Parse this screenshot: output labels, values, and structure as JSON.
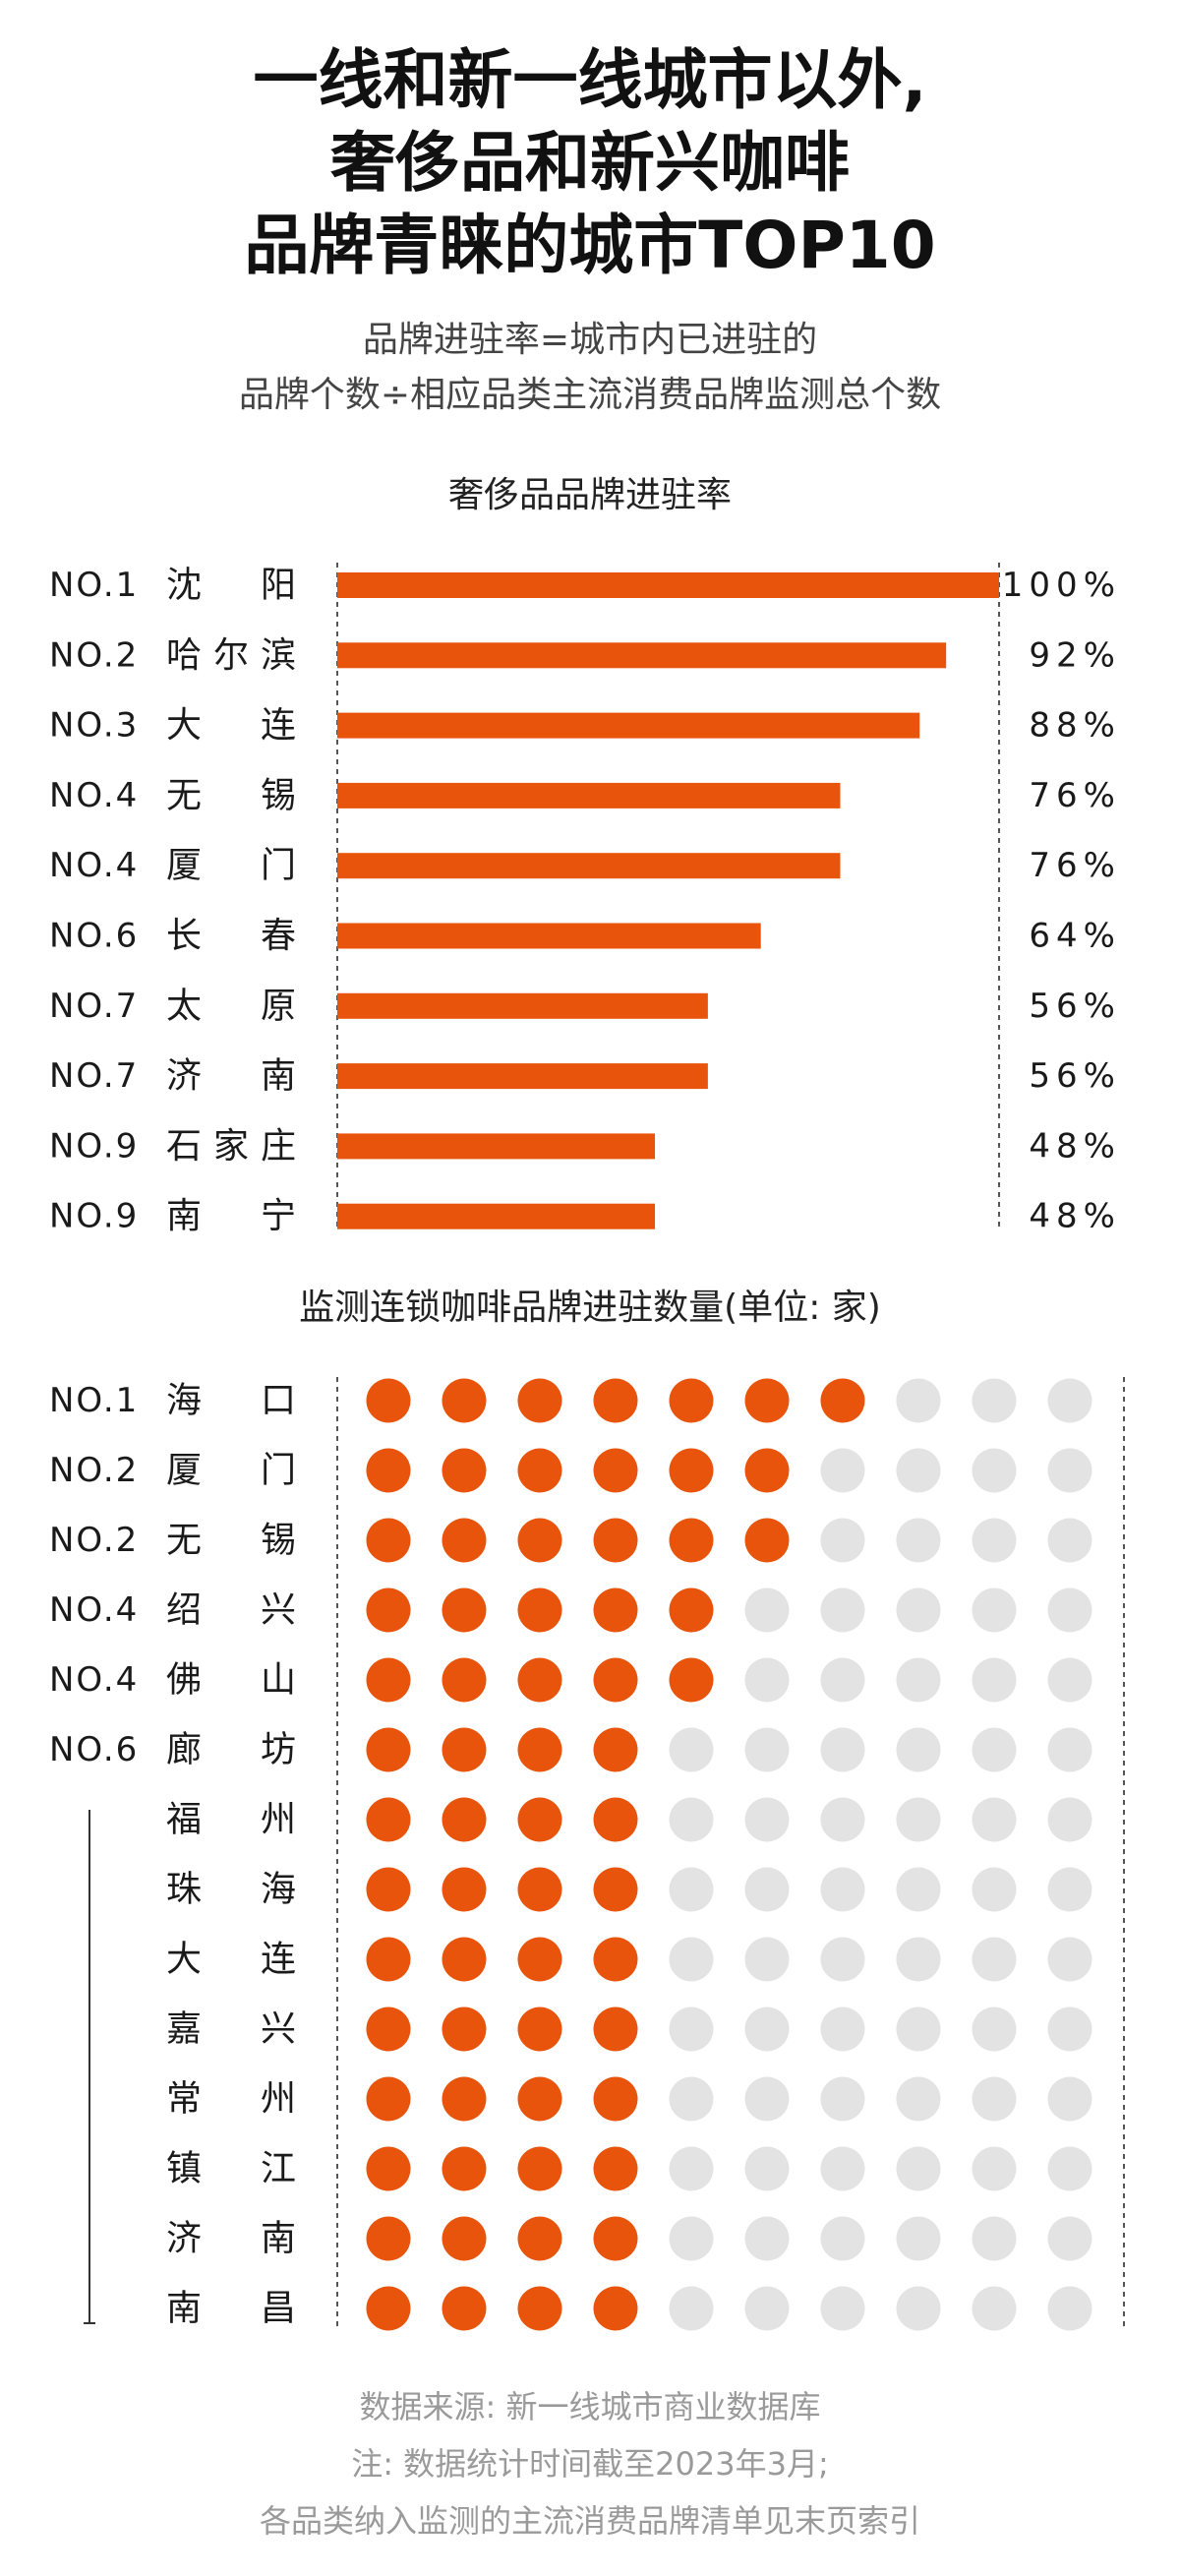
{
  "title": {
    "line1": "一线和新一线城市以外,",
    "line2": "奢侈品和新兴咖啡",
    "line3": "品牌青睐的城市TOP10"
  },
  "subtitle": {
    "line1": "品牌进驻率=城市内已进驻的",
    "line2": "品牌个数÷相应品类主流消费品牌监测总个数"
  },
  "colors": {
    "accent": "#e8540b",
    "empty": "#e3e3e3",
    "text": "#1a1a1a"
  },
  "chart_data": [
    {
      "type": "bar",
      "title": "奢侈品品牌进驻率",
      "orientation": "horizontal",
      "ranks": [
        "NO.1",
        "NO.2",
        "NO.3",
        "NO.4",
        "NO.4",
        "NO.6",
        "NO.7",
        "NO.7",
        "NO.9",
        "NO.9"
      ],
      "categories": [
        "沈阳",
        "哈尔滨",
        "大连",
        "无锡",
        "厦门",
        "长春",
        "太原",
        "济南",
        "石家庄",
        "南宁"
      ],
      "values": [
        100,
        92,
        88,
        76,
        76,
        64,
        56,
        56,
        48,
        48
      ],
      "value_labels": [
        "100%",
        "92%",
        "88%",
        "76%",
        "76%",
        "64%",
        "56%",
        "56%",
        "48%",
        "48%"
      ],
      "xlim": [
        0,
        100
      ],
      "unit": "%"
    },
    {
      "type": "dot",
      "title": "监测连锁咖啡品牌进驻数量(单位: 家)",
      "ranks": [
        "NO.1",
        "NO.2",
        "NO.2",
        "NO.4",
        "NO.4",
        "NO.6",
        "",
        "",
        "",
        "",
        "",
        "",
        "",
        ""
      ],
      "categories": [
        "海口",
        "厦门",
        "无锡",
        "绍兴",
        "佛山",
        "廊坊",
        "福州",
        "珠海",
        "大连",
        "嘉兴",
        "常州",
        "镇江",
        "济南",
        "南昌"
      ],
      "values": [
        7,
        6,
        6,
        5,
        5,
        4,
        4,
        4,
        4,
        4,
        4,
        4,
        4,
        4
      ],
      "max": 10
    }
  ],
  "footer": {
    "line1": "数据来源: 新一线城市商业数据库",
    "line2": "注: 数据统计时间截至2023年3月;",
    "line3": "各品类纳入监测的主流消费品牌清单见末页索引"
  }
}
